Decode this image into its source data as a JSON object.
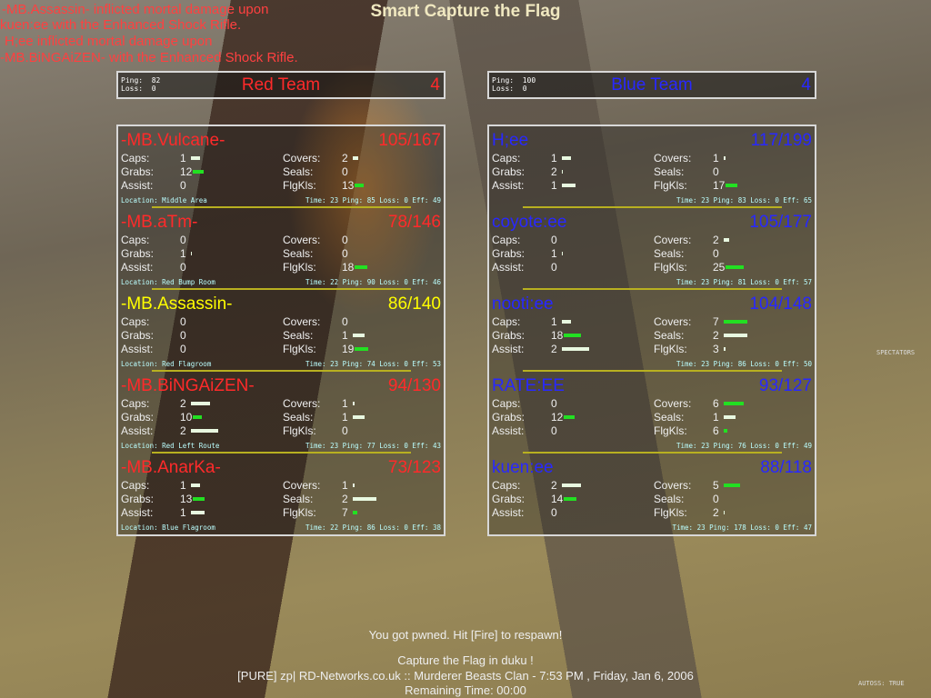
{
  "kill_messages": [
    "-MB.Assassin- inflicted mortal damage upon",
    "kuen:ee with the Enhanced Shock Rifle.",
    "H;ee inflicted mortal damage upon",
    "-MB.BiNGAiZEN- with the Enhanced Shock Rifle."
  ],
  "title": "Smart Capture the Flag",
  "labels": {
    "caps": "Caps:",
    "grabs": "Grabs:",
    "assist": "Assist:",
    "covers": "Covers:",
    "seals": "Seals:",
    "flgkls": "FlgKls:",
    "location": "Location:",
    "time": "Time:",
    "ping": "Ping:",
    "loss": "Loss:",
    "eff": "Eff:"
  },
  "colors": {
    "red": "#ff2a2a",
    "blue": "#2828ff",
    "highlight": "#ffff00",
    "bar_high": "#22e022",
    "bar_low": "#e8f8e0"
  },
  "teams": [
    {
      "name": "Red Team",
      "score": "4",
      "ping": "82",
      "loss": "0",
      "color": "#ff2a2a",
      "players": [
        {
          "name": "-MB.Vulcane-",
          "score": "105/167",
          "caps": 1,
          "grabs": 12,
          "assist": 0,
          "covers": 2,
          "seals": 0,
          "flgkls": 13,
          "location": "Middle Area",
          "time": "23",
          "ping": "85",
          "loss": "0",
          "eff": "49"
        },
        {
          "name": "-MB.aTm-",
          "score": "78/146",
          "caps": 0,
          "grabs": 1,
          "assist": 0,
          "covers": 0,
          "seals": 0,
          "flgkls": 18,
          "location": "Red Bump Room",
          "time": "22",
          "ping": "90",
          "loss": "0",
          "eff": "46"
        },
        {
          "name": "-MB.Assassin-",
          "score": "86/140",
          "caps": 0,
          "grabs": 0,
          "assist": 0,
          "covers": 0,
          "seals": 1,
          "flgkls": 19,
          "location": "Red Flagroom",
          "time": "23",
          "ping": "74",
          "loss": "0",
          "eff": "53",
          "highlight": true
        },
        {
          "name": "-MB.BiNGAiZEN-",
          "score": "94/130",
          "caps": 2,
          "grabs": 10,
          "assist": 2,
          "covers": 1,
          "seals": 1,
          "flgkls": 0,
          "location": "Red Left Route",
          "time": "23",
          "ping": "77",
          "loss": "0",
          "eff": "43"
        },
        {
          "name": "-MB.AnarKa-",
          "score": "73/123",
          "caps": 1,
          "grabs": 13,
          "assist": 1,
          "covers": 1,
          "seals": 2,
          "flgkls": 7,
          "location": "Blue Flagroom",
          "time": "22",
          "ping": "86",
          "loss": "0",
          "eff": "38"
        }
      ]
    },
    {
      "name": "Blue Team",
      "score": "4",
      "ping": "100",
      "loss": "0",
      "color": "#2828ff",
      "players": [
        {
          "name": "H;ee",
          "score": "117/199",
          "caps": 1,
          "grabs": 2,
          "assist": 1,
          "covers": 1,
          "seals": 0,
          "flgkls": 17,
          "time": "23",
          "ping": "83",
          "loss": "0",
          "eff": "65"
        },
        {
          "name": "coyote:ee",
          "score": "105/177",
          "caps": 0,
          "grabs": 1,
          "assist": 0,
          "covers": 2,
          "seals": 0,
          "flgkls": 25,
          "time": "23",
          "ping": "81",
          "loss": "0",
          "eff": "57"
        },
        {
          "name": "nooti:ee",
          "score": "104/148",
          "caps": 1,
          "grabs": 18,
          "assist": 2,
          "covers": 7,
          "seals": 2,
          "flgkls": 3,
          "time": "23",
          "ping": "86",
          "loss": "0",
          "eff": "50"
        },
        {
          "name": "RATE:EE",
          "score": "93/127",
          "caps": 0,
          "grabs": 12,
          "assist": 0,
          "covers": 6,
          "seals": 1,
          "flgkls": 6,
          "time": "23",
          "ping": "76",
          "loss": "0",
          "eff": "49"
        },
        {
          "name": "kuen:ee",
          "score": "88/118",
          "caps": 2,
          "grabs": 14,
          "assist": 0,
          "covers": 5,
          "seals": 0,
          "flgkls": 2,
          "time": "23",
          "ping": "178",
          "loss": "0",
          "eff": "47"
        }
      ]
    }
  ],
  "spectators": "SPECTATORS",
  "respawn_msg": "You got pwned.  Hit [Fire] to respawn!",
  "game_info": "Capture the Flag in duku !",
  "server_info": "[PURE] zp| RD-Networks.co.uk :: Murderer Beasts Clan - 7:53 PM , Friday, Jan 6, 2006",
  "remaining": "Remaining Time:  00:00",
  "autoss": "AUTOSS:  TRUE"
}
